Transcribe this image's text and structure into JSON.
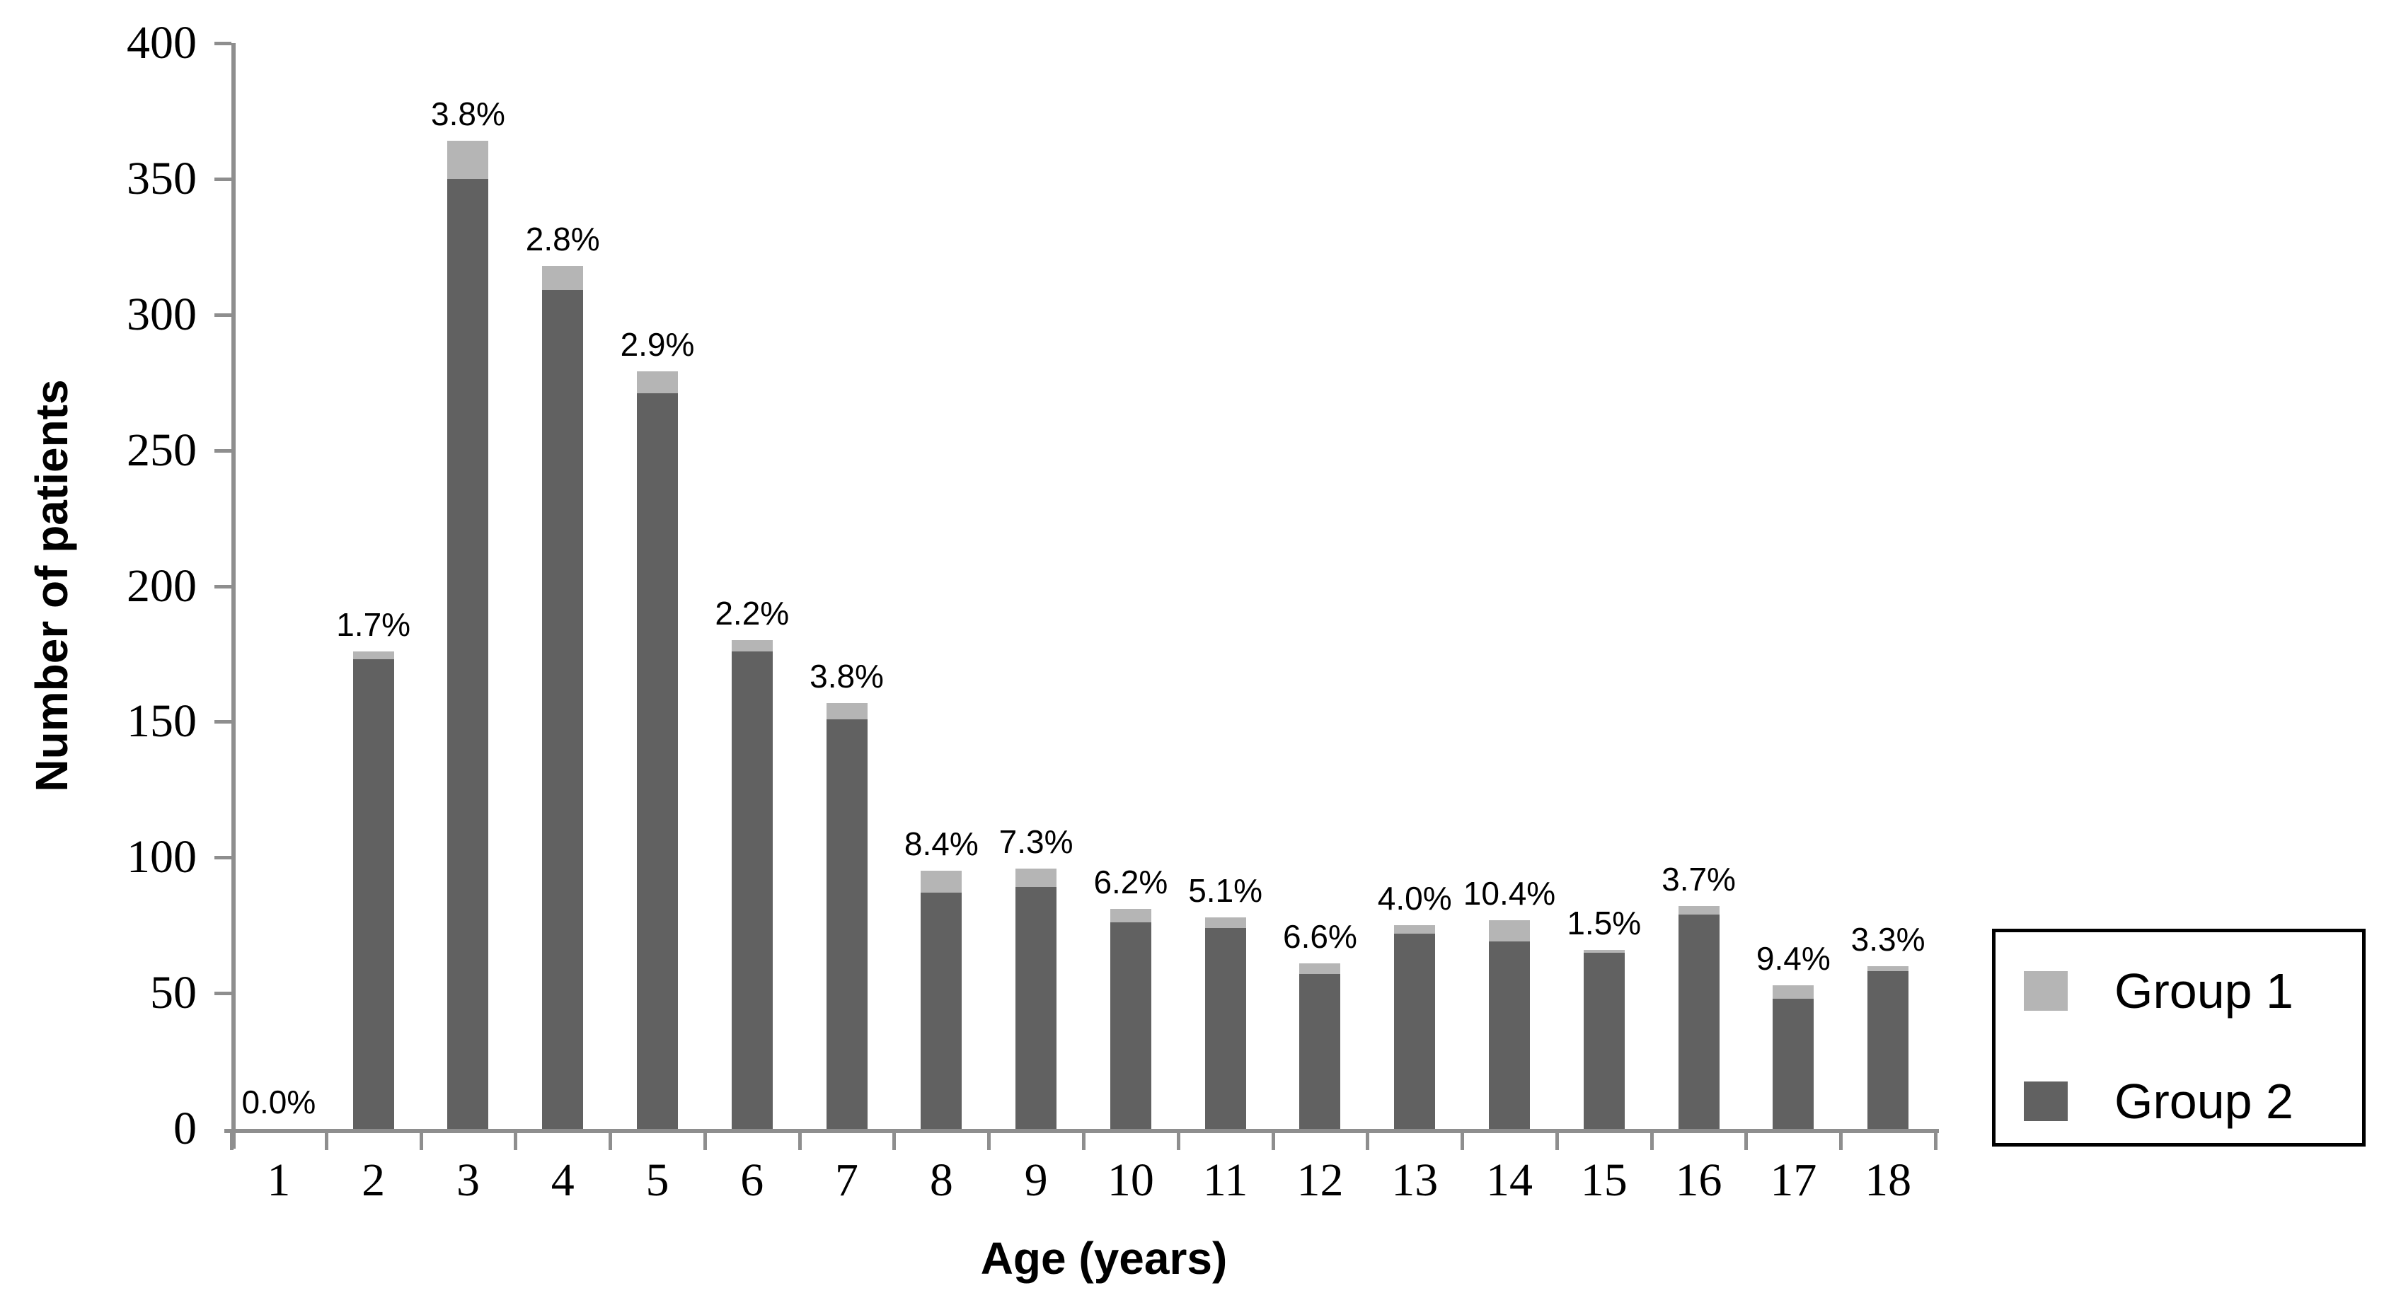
{
  "figure": {
    "y_axis_title": "Number of patients",
    "x_axis_title": "Age (years)"
  },
  "legend": {
    "position": "right",
    "items": [
      {
        "label": "Group 1",
        "color": "#b5b5b5"
      },
      {
        "label": "Group 2",
        "color": "#616161"
      }
    ]
  },
  "colors": {
    "axis": "#8e8e8e",
    "text": "#000000",
    "background": "#ffffff",
    "group1": "#b5b5b5",
    "group2": "#616161"
  },
  "chart_data": {
    "type": "bar",
    "stacked": true,
    "title": "",
    "xlabel": "Age (years)",
    "ylabel": "Number of patients",
    "ylim": [
      0,
      400
    ],
    "yticks": [
      0,
      50,
      100,
      150,
      200,
      250,
      300,
      350,
      400
    ],
    "grid": false,
    "legend_position": "right",
    "categories": [
      "1",
      "2",
      "3",
      "4",
      "5",
      "6",
      "7",
      "8",
      "9",
      "10",
      "11",
      "12",
      "13",
      "14",
      "15",
      "16",
      "17",
      "18"
    ],
    "series": [
      {
        "name": "Group 1",
        "color": "#b5b5b5",
        "values": [
          0,
          3,
          14,
          9,
          8,
          4,
          6,
          8,
          7,
          5,
          4,
          4,
          3,
          8,
          1,
          3,
          5,
          2
        ]
      },
      {
        "name": "Group 2",
        "color": "#616161",
        "values": [
          0,
          173,
          350,
          309,
          271,
          176,
          151,
          87,
          89,
          76,
          74,
          57,
          72,
          69,
          65,
          79,
          48,
          58
        ]
      }
    ],
    "totals": [
      0,
      176,
      364,
      318,
      279,
      180,
      157,
      95,
      96,
      81,
      78,
      61,
      75,
      77,
      66,
      82,
      53,
      60
    ],
    "bar_labels": [
      "0.0%",
      "1.7%",
      "3.8%",
      "2.8%",
      "2.9%",
      "2.2%",
      "3.8%",
      "8.4%",
      "7.3%",
      "6.2%",
      "5.1%",
      "6.6%",
      "4.0%",
      "10.4%",
      "1.5%",
      "3.7%",
      "9.4%",
      "3.3%"
    ]
  }
}
